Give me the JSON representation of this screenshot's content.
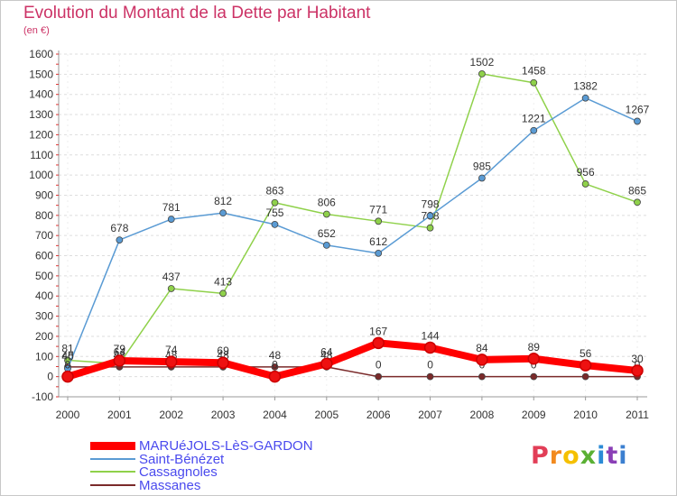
{
  "title": "Evolution du Montant de la Dette par Habitant",
  "subtitle": "(en €)",
  "logo": {
    "text": "Proxiti",
    "colors": [
      "#e23e57",
      "#f28a1e",
      "#f5c000",
      "#5ab034",
      "#2b8bd6",
      "#8a3fb6",
      "#3b7fd0"
    ]
  },
  "chart_data": {
    "type": "line",
    "x": [
      "2000",
      "2001",
      "2002",
      "2003",
      "2004",
      "2005",
      "2006",
      "2007",
      "2008",
      "2009",
      "2010",
      "2011"
    ],
    "ylim": [
      -100,
      1600
    ],
    "yticks": [
      "-100",
      "0",
      "100",
      "200",
      "300",
      "400",
      "500",
      "600",
      "700",
      "800",
      "900",
      "1000",
      "1100",
      "1200",
      "1300",
      "1400",
      "1500",
      "1600"
    ],
    "grid": "horizontal",
    "legend_position": "bottom-left",
    "series": [
      {
        "name": "Massanes",
        "color": "#7a2a2a",
        "values": [
          48,
          48,
          48,
          48,
          48,
          48,
          0,
          0,
          0,
          0,
          0,
          0
        ],
        "labels": [
          "48",
          "48",
          "48",
          "48",
          "48",
          "48",
          "0",
          "0",
          "0",
          "0",
          "0",
          "0"
        ]
      },
      {
        "name": "Cassagnoles",
        "color": "#8fd14a",
        "values": [
          81,
          64,
          437,
          413,
          863,
          806,
          771,
          738,
          1502,
          1458,
          956,
          865
        ],
        "labels": [
          "81",
          "64",
          "437",
          "413",
          "863",
          "806",
          "771",
          "738",
          "1502",
          "1458",
          "956",
          "865"
        ]
      },
      {
        "name": "Saint-Bénézet",
        "color": "#5a9bd4",
        "values": [
          40,
          678,
          781,
          812,
          755,
          652,
          612,
          798,
          985,
          1221,
          1382,
          1267
        ],
        "labels": [
          "40",
          "678",
          "781",
          "812",
          "755",
          "652",
          "612",
          "798",
          "985",
          "1221",
          "1382",
          "1267"
        ]
      },
      {
        "name": "MARUéJOLS-LèS-GARDON",
        "color": "#ff0000",
        "values": [
          0,
          79,
          74,
          69,
          0,
          64,
          167,
          144,
          84,
          89,
          56,
          30
        ],
        "labels": [
          "0",
          "79",
          "74",
          "69",
          "0",
          "64",
          "167",
          "144",
          "84",
          "89",
          "56",
          "30"
        ]
      }
    ],
    "legend": [
      "MARUéJOLS-LèS-GARDON",
      "Saint-Bénézet",
      "Cassagnoles",
      "Massanes"
    ]
  }
}
